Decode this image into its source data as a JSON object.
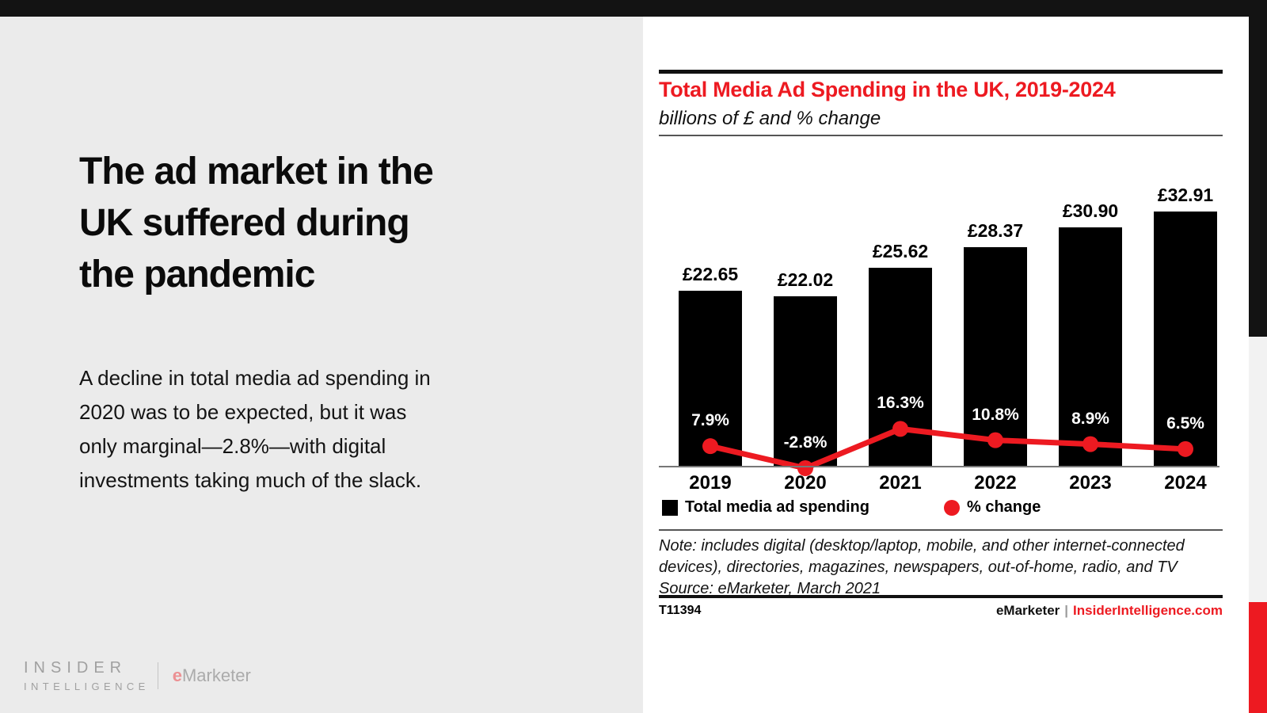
{
  "slide": {
    "headline_lines": [
      "The ad market in the",
      "UK suffered during",
      "the pandemic"
    ],
    "body_lines": [
      "A decline in total media ad spending in",
      "2020 was to be expected, but it was",
      "only marginal—2.8%—with digital",
      "investments taking much of the slack."
    ]
  },
  "branding": {
    "insider_top": "INSIDER",
    "insider_bottom": "INTELLIGENCE",
    "emarketer_e": "e",
    "emarketer_rest": "Marketer"
  },
  "chart": {
    "note_lines": [
      "Note: includes digital (desktop/laptop, mobile, and other internet-connected",
      "devices), directories, magazines, newspapers, out-of-home, radio, and TV",
      "Source: eMarketer, March 2021"
    ],
    "chart_id": "T11394",
    "footer_brand": "eMarketer",
    "footer_separator": "|",
    "footer_site": "InsiderIntelligence.com"
  },
  "chart_data": {
    "type": "bar",
    "title": "Total Media Ad Spending in the UK, 2019-2024",
    "subtitle": "billions of £ and % change",
    "categories": [
      "2019",
      "2020",
      "2021",
      "2022",
      "2023",
      "2024"
    ],
    "series": [
      {
        "name": "Total media ad spending",
        "type": "bar",
        "unit": "billions of £",
        "color": "#000000",
        "values": [
          22.65,
          22.02,
          25.62,
          28.37,
          30.9,
          32.91
        ],
        "labels": [
          "£22.65",
          "£22.02",
          "£25.62",
          "£28.37",
          "£30.90",
          "£32.91"
        ]
      },
      {
        "name": "% change",
        "type": "line",
        "unit": "%",
        "color": "#ed1a21",
        "values": [
          7.9,
          -2.8,
          16.3,
          10.8,
          8.9,
          6.5
        ],
        "labels": [
          "7.9%",
          "-2.8%",
          "16.3%",
          "10.8%",
          "8.9%",
          "6.5%"
        ]
      }
    ],
    "note": "Note: includes digital (desktop/laptop, mobile, and other internet-connected devices), directories, magazines, newspapers, out-of-home, radio, and TV",
    "source": "Source: eMarketer, March 2021",
    "legend_position": "bottom",
    "grid": false
  },
  "colors": {
    "accent_red": "#ed1a21",
    "bar_black": "#000000",
    "left_panel_gray": "#ebebeb",
    "top_bar_black": "#131313",
    "side_strip_gray": "#f2f2f2",
    "logo_gray": "#a0a0a0"
  }
}
